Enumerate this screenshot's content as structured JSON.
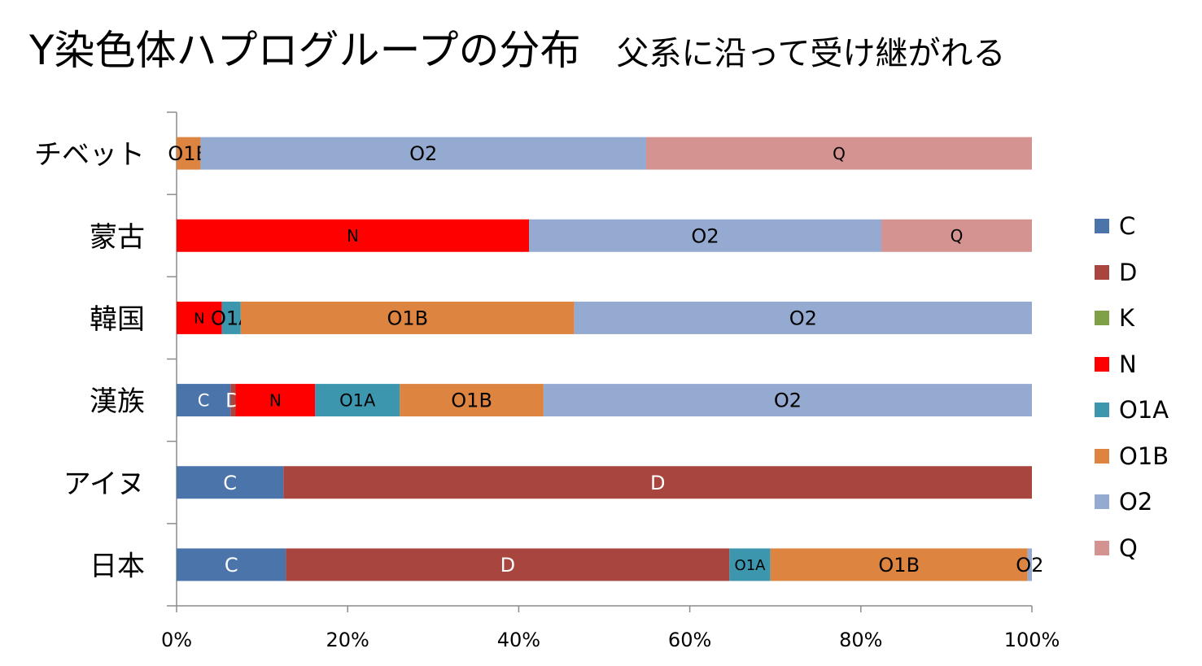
{
  "title": "Y染色体ハプログループの分布",
  "subtitle": "父系に沿って受け継がれる",
  "colors": {
    "C": "#4a74aa",
    "D": "#a9453f",
    "K": "#7fa047",
    "N": "#ff0000",
    "O1A": "#3c97ae",
    "O1B": "#dd8440",
    "O2": "#94aad1",
    "Q": "#d49391"
  },
  "chart_data": {
    "type": "bar",
    "orientation": "horizontal",
    "stacked": "percent",
    "categories": [
      "チベット",
      "蒙古",
      "韓国",
      "漢族",
      "アイヌ",
      "日本"
    ],
    "series": [
      {
        "name": "C",
        "values": [
          0,
          0,
          0,
          6.3,
          12.5,
          12.8
        ]
      },
      {
        "name": "D",
        "values": [
          0,
          0,
          0,
          0.6,
          87.5,
          51.9
        ]
      },
      {
        "name": "K",
        "values": [
          0,
          0,
          0,
          0,
          0,
          0
        ]
      },
      {
        "name": "N",
        "values": [
          0,
          41.2,
          5.3,
          9.3,
          0,
          0
        ]
      },
      {
        "name": "O1A",
        "values": [
          0,
          0,
          2.2,
          9.9,
          0,
          4.8
        ]
      },
      {
        "name": "O1B",
        "values": [
          2.8,
          0,
          39.0,
          16.8,
          0,
          30.1
        ]
      },
      {
        "name": "O2",
        "values": [
          52.1,
          41.2,
          53.5,
          57.1,
          0,
          0.5
        ]
      },
      {
        "name": "Q",
        "values": [
          45.1,
          17.6,
          0,
          0,
          0,
          0
        ]
      }
    ],
    "x_ticks": [
      "0%",
      "20%",
      "40%",
      "60%",
      "80%",
      "100%"
    ],
    "xlim": [
      0,
      100
    ],
    "legend_position": "right",
    "grid": false,
    "data_labels": true
  }
}
